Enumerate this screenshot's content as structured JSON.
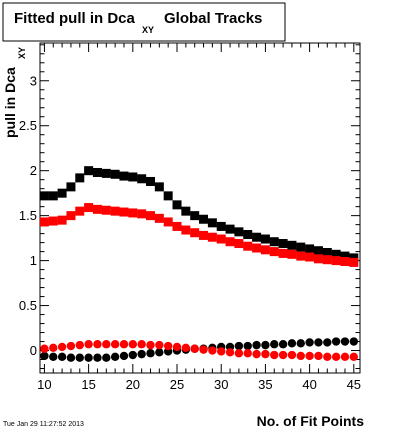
{
  "chart_data": {
    "type": "scatter",
    "title": "Fitted pull in Dca",
    "title_subscript": "XY",
    "title_suffix": "Global Tracks",
    "xlabel": "No. of Fit Points",
    "ylabel": "pull in Dca",
    "ylabel_subscript": "XY",
    "xlim": [
      9.5,
      45.7
    ],
    "ylim": [
      -0.25,
      3.42
    ],
    "x_ticks": [
      10,
      15,
      20,
      25,
      30,
      35,
      40,
      45
    ],
    "y_ticks": [
      0,
      0.5,
      1,
      1.5,
      2,
      2.5,
      3
    ],
    "y_tick_labels": [
      "0",
      "0.5",
      "1",
      "1.5",
      "2",
      "2.5",
      "3"
    ],
    "timestamp": "Tue Jan 29 11:27:52 2013",
    "series": [
      {
        "marker": "square",
        "color": "#000000",
        "x": [
          10,
          11,
          12,
          13,
          14,
          15,
          16,
          17,
          18,
          19,
          20,
          21,
          22,
          23,
          24,
          25,
          26,
          27,
          28,
          29,
          30,
          31,
          32,
          33,
          34,
          35,
          36,
          37,
          38,
          39,
          40,
          41,
          42,
          43,
          44,
          45
        ],
        "values": [
          1.72,
          1.72,
          1.75,
          1.82,
          1.92,
          2.0,
          1.98,
          1.97,
          1.96,
          1.94,
          1.93,
          1.91,
          1.88,
          1.82,
          1.72,
          1.62,
          1.55,
          1.5,
          1.46,
          1.42,
          1.38,
          1.35,
          1.32,
          1.29,
          1.26,
          1.24,
          1.21,
          1.19,
          1.17,
          1.15,
          1.13,
          1.11,
          1.09,
          1.07,
          1.05,
          1.03
        ]
      },
      {
        "marker": "square",
        "color": "#ff0000",
        "x": [
          10,
          11,
          12,
          13,
          14,
          15,
          16,
          17,
          18,
          19,
          20,
          21,
          22,
          23,
          24,
          25,
          26,
          27,
          28,
          29,
          30,
          31,
          32,
          33,
          34,
          35,
          36,
          37,
          38,
          39,
          40,
          41,
          42,
          43,
          44,
          45
        ],
        "values": [
          1.43,
          1.44,
          1.45,
          1.5,
          1.55,
          1.59,
          1.57,
          1.56,
          1.55,
          1.54,
          1.53,
          1.52,
          1.5,
          1.47,
          1.43,
          1.38,
          1.34,
          1.31,
          1.28,
          1.26,
          1.24,
          1.21,
          1.19,
          1.16,
          1.14,
          1.12,
          1.1,
          1.08,
          1.07,
          1.05,
          1.04,
          1.02,
          1.01,
          1.0,
          0.99,
          0.98
        ]
      },
      {
        "marker": "circle",
        "color": "#000000",
        "x": [
          10,
          11,
          12,
          13,
          14,
          15,
          16,
          17,
          18,
          19,
          20,
          21,
          22,
          23,
          24,
          25,
          26,
          27,
          28,
          29,
          30,
          31,
          32,
          33,
          34,
          35,
          36,
          37,
          38,
          39,
          40,
          41,
          42,
          43,
          44,
          45
        ],
        "values": [
          -0.06,
          -0.07,
          -0.07,
          -0.08,
          -0.08,
          -0.08,
          -0.08,
          -0.08,
          -0.07,
          -0.06,
          -0.05,
          -0.04,
          -0.03,
          -0.02,
          -0.01,
          0.0,
          0.01,
          0.02,
          0.02,
          0.03,
          0.04,
          0.04,
          0.05,
          0.05,
          0.06,
          0.06,
          0.07,
          0.07,
          0.08,
          0.08,
          0.09,
          0.09,
          0.09,
          0.1,
          0.1,
          0.1
        ]
      },
      {
        "marker": "circle",
        "color": "#ff0000",
        "x": [
          10,
          11,
          12,
          13,
          14,
          15,
          16,
          17,
          18,
          19,
          20,
          21,
          22,
          23,
          24,
          25,
          26,
          27,
          28,
          29,
          30,
          31,
          32,
          33,
          34,
          35,
          36,
          37,
          38,
          39,
          40,
          41,
          42,
          43,
          44,
          45
        ],
        "values": [
          0.02,
          0.03,
          0.04,
          0.05,
          0.06,
          0.07,
          0.07,
          0.07,
          0.07,
          0.07,
          0.07,
          0.07,
          0.06,
          0.06,
          0.05,
          0.04,
          0.03,
          0.02,
          0.01,
          0.0,
          -0.01,
          -0.02,
          -0.03,
          -0.03,
          -0.04,
          -0.04,
          -0.05,
          -0.05,
          -0.05,
          -0.06,
          -0.06,
          -0.06,
          -0.07,
          -0.07,
          -0.07,
          -0.07
        ]
      }
    ]
  }
}
